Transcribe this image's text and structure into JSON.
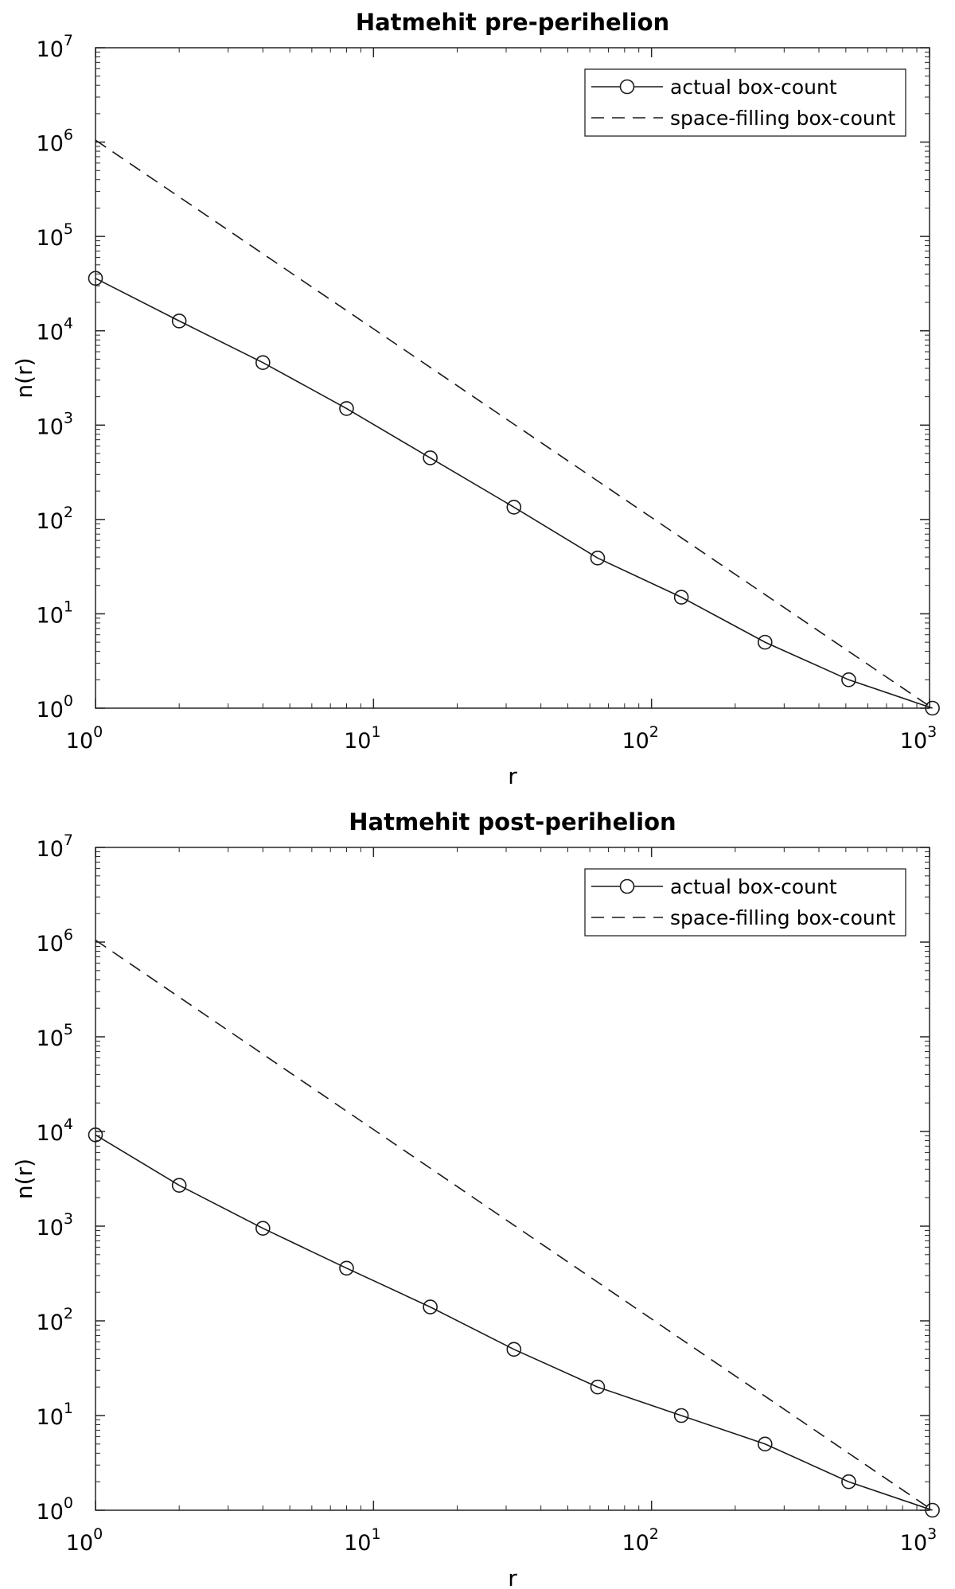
{
  "chart_data": [
    {
      "type": "line",
      "title": "Hatmehit pre-perihelion",
      "xlabel": "r",
      "ylabel": "n(r)",
      "xscale": "log",
      "yscale": "log",
      "xlim": [
        1,
        1000
      ],
      "ylim": [
        1,
        10000000
      ],
      "x_ticks": [
        {
          "base": "10",
          "exp": "0",
          "value": 1
        },
        {
          "base": "10",
          "exp": "1",
          "value": 10
        },
        {
          "base": "10",
          "exp": "2",
          "value": 100
        },
        {
          "base": "10",
          "exp": "3",
          "value": 1000
        }
      ],
      "y_ticks": [
        {
          "base": "10",
          "exp": "0",
          "value": 1
        },
        {
          "base": "10",
          "exp": "1",
          "value": 10
        },
        {
          "base": "10",
          "exp": "2",
          "value": 100
        },
        {
          "base": "10",
          "exp": "3",
          "value": 1000
        },
        {
          "base": "10",
          "exp": "4",
          "value": 10000
        },
        {
          "base": "10",
          "exp": "5",
          "value": 100000
        },
        {
          "base": "10",
          "exp": "6",
          "value": 1000000
        },
        {
          "base": "10",
          "exp": "7",
          "value": 10000000
        }
      ],
      "grid": false,
      "legend_position": "top-right",
      "series": [
        {
          "name": "actual box-count",
          "style": "solid-circle-markers",
          "x": [
            1,
            2,
            4,
            8,
            16,
            32,
            64,
            128,
            256,
            512,
            1024
          ],
          "y": [
            36000,
            12700,
            4600,
            1500,
            450,
            135,
            39,
            15,
            5,
            2,
            1
          ]
        },
        {
          "name": "space-filling box-count",
          "style": "dashed",
          "x": [
            1,
            2,
            4,
            8,
            16,
            32,
            64,
            128,
            256,
            512,
            1024
          ],
          "y": [
            1048576,
            262144,
            65536,
            16384,
            4096,
            1024,
            256,
            64,
            16,
            4,
            1
          ]
        }
      ]
    },
    {
      "type": "line",
      "title": "Hatmehit post-perihelion",
      "xlabel": "r",
      "ylabel": "n(r)",
      "xscale": "log",
      "yscale": "log",
      "xlim": [
        1,
        1000
      ],
      "ylim": [
        1,
        10000000
      ],
      "x_ticks": [
        {
          "base": "10",
          "exp": "0",
          "value": 1
        },
        {
          "base": "10",
          "exp": "1",
          "value": 10
        },
        {
          "base": "10",
          "exp": "2",
          "value": 100
        },
        {
          "base": "10",
          "exp": "3",
          "value": 1000
        }
      ],
      "y_ticks": [
        {
          "base": "10",
          "exp": "0",
          "value": 1
        },
        {
          "base": "10",
          "exp": "1",
          "value": 10
        },
        {
          "base": "10",
          "exp": "2",
          "value": 100
        },
        {
          "base": "10",
          "exp": "3",
          "value": 1000
        },
        {
          "base": "10",
          "exp": "4",
          "value": 10000
        },
        {
          "base": "10",
          "exp": "5",
          "value": 100000
        },
        {
          "base": "10",
          "exp": "6",
          "value": 1000000
        },
        {
          "base": "10",
          "exp": "7",
          "value": 10000000
        }
      ],
      "grid": false,
      "legend_position": "top-right",
      "series": [
        {
          "name": "actual box-count",
          "style": "solid-circle-markers",
          "x": [
            1,
            2,
            4,
            8,
            16,
            32,
            64,
            128,
            256,
            512,
            1024
          ],
          "y": [
            9200,
            2700,
            950,
            360,
            140,
            50,
            20,
            10,
            5,
            2,
            1
          ]
        },
        {
          "name": "space-filling box-count",
          "style": "dashed",
          "x": [
            1,
            2,
            4,
            8,
            16,
            32,
            64,
            128,
            256,
            512,
            1024
          ],
          "y": [
            1048576,
            262144,
            65536,
            16384,
            4096,
            1024,
            256,
            64,
            16,
            4,
            1
          ]
        }
      ]
    }
  ]
}
